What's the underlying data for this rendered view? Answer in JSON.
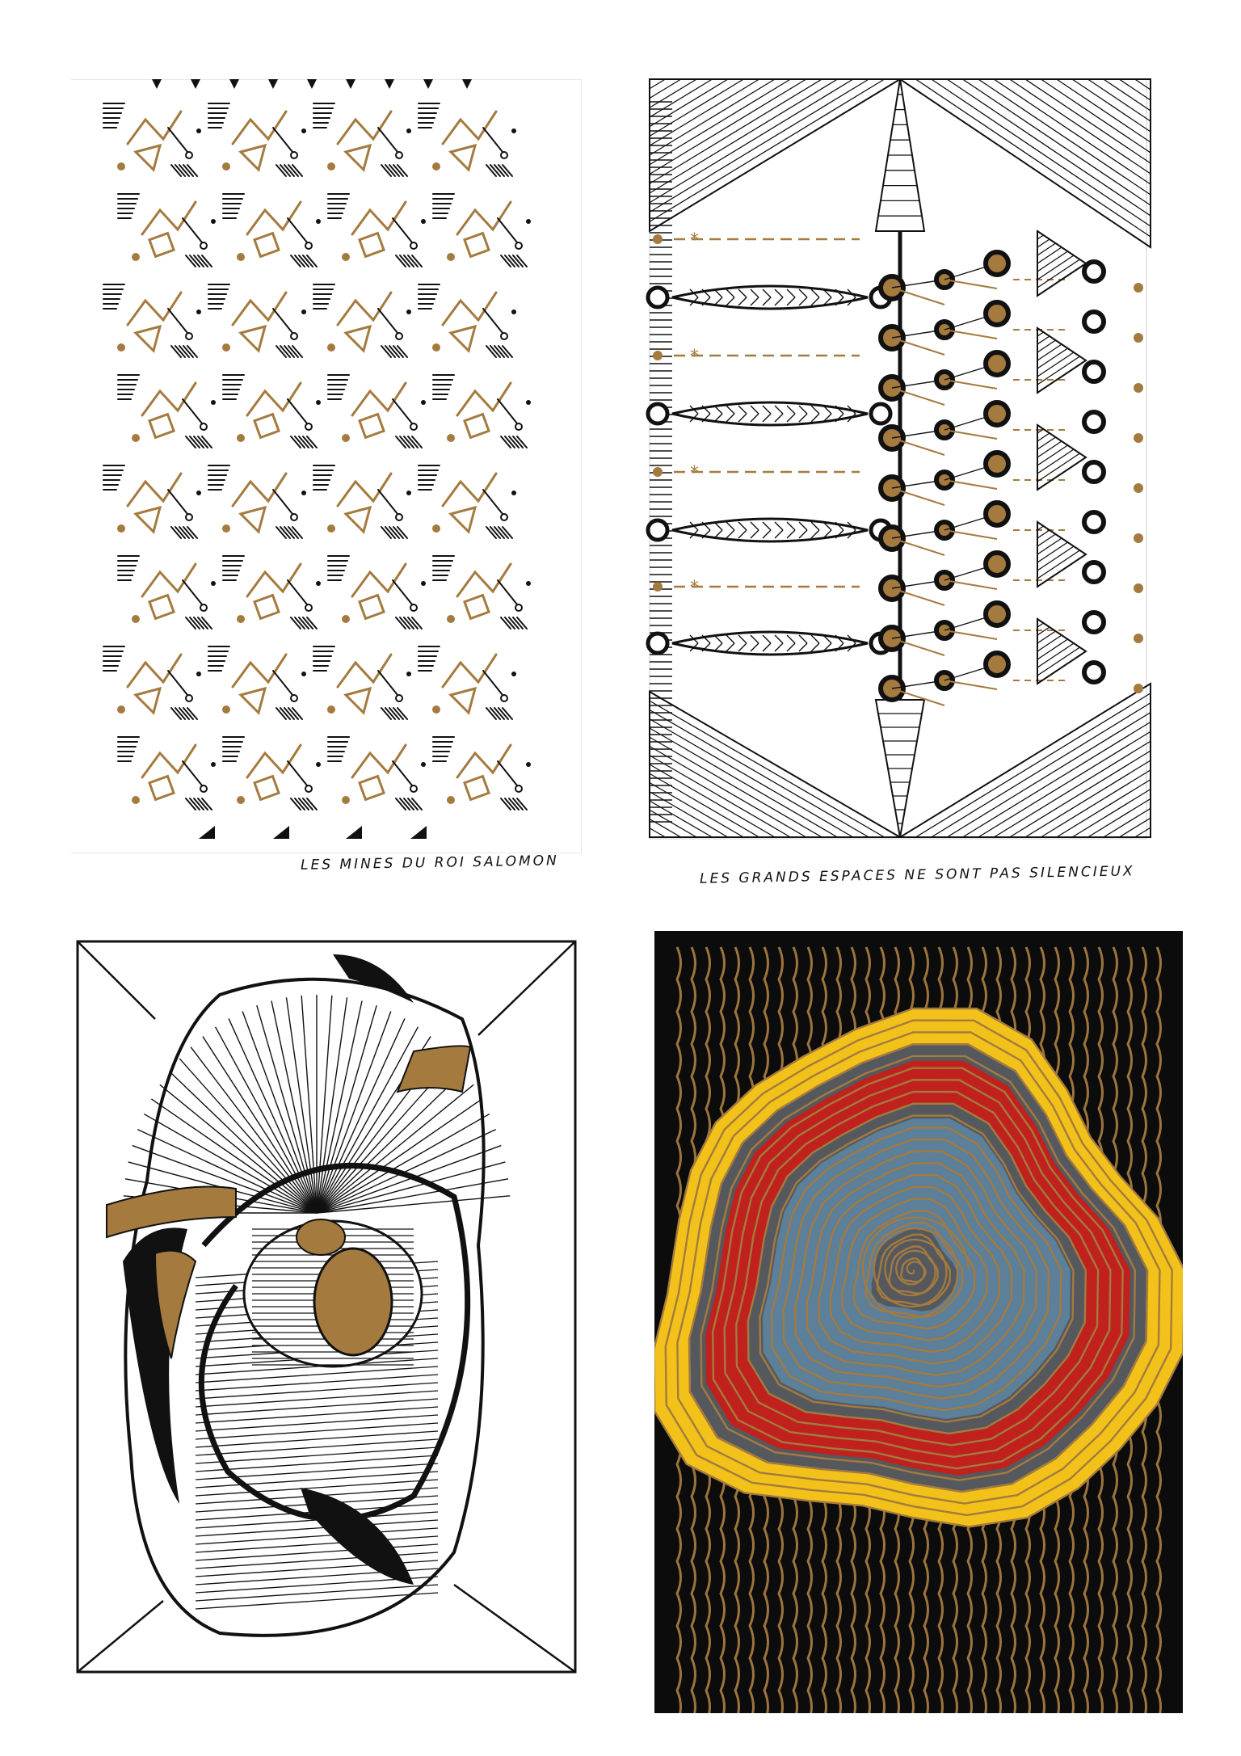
{
  "artworks": [
    {
      "id": "p1",
      "caption": "LES MINES DU ROI SALOMON"
    },
    {
      "id": "p2",
      "caption": "LES GRANDS ESPACES NE SONT PAS SILENCIEUX"
    },
    {
      "id": "p3",
      "caption": ""
    },
    {
      "id": "p4",
      "caption": ""
    }
  ],
  "palette": {
    "ink": "#111111",
    "gold": "#a47a3f",
    "paper": "#ffffff",
    "black_ground": "#0c0c0c",
    "yellow": "#f2c21a",
    "red": "#c0211c",
    "grey": "#55595e",
    "blue": "#5c7f9a"
  }
}
